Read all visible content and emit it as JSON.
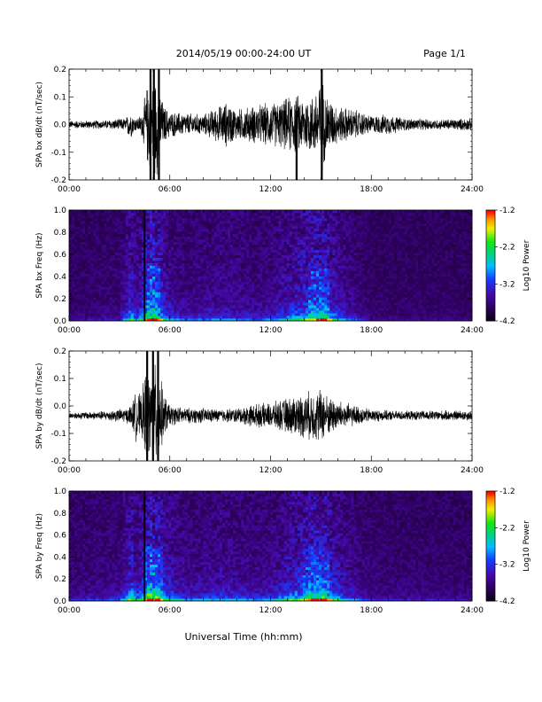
{
  "header": {
    "date_range": "2014/05/19  00:00-24:00 UT",
    "page": "Page 1/1"
  },
  "x_axis": {
    "label": "Universal Time (hh:mm)",
    "ticks": [
      "00:00",
      "06:00",
      "12:00",
      "18:00",
      "24:00"
    ]
  },
  "chart_data": [
    {
      "type": "line",
      "ylabel": "SPA bx dB/dt (nT/sec)",
      "xlim": [
        0,
        24
      ],
      "ylim": [
        -0.2,
        0.2
      ],
      "yticks": [
        "0.2",
        "0.1",
        "0.0",
        "-0.1",
        "-0.2"
      ],
      "envelope": {
        "hours": [
          0,
          2,
          3.4,
          3.6,
          3.8,
          4.0,
          4.3,
          4.8,
          5.0,
          5.3,
          5.6,
          6.0,
          7,
          8,
          9.4,
          10,
          11,
          11.8,
          12.5,
          13.4,
          14,
          14.6,
          15.0,
          15.3,
          15.7,
          16,
          17,
          18,
          19,
          20,
          22,
          24
        ],
        "amplitude_nT_per_s": [
          0.015,
          0.017,
          0.025,
          0.06,
          0.04,
          0.025,
          0.04,
          0.2,
          0.2,
          0.2,
          0.08,
          0.05,
          0.045,
          0.04,
          0.09,
          0.06,
          0.075,
          0.085,
          0.09,
          0.12,
          0.11,
          0.12,
          0.2,
          0.13,
          0.09,
          0.075,
          0.06,
          0.035,
          0.04,
          0.025,
          0.02,
          0.025
        ]
      },
      "spikes": [
        {
          "hour": 4.85,
          "min": -0.2,
          "max": 0.2
        },
        {
          "hour": 5.05,
          "min": -0.2,
          "max": 0.2
        },
        {
          "hour": 5.35,
          "min": -0.2,
          "max": 0.2
        },
        {
          "hour": 13.55,
          "min": -0.2,
          "max": 0.05
        },
        {
          "hour": 15.05,
          "min": -0.2,
          "max": 0.2
        }
      ]
    },
    {
      "type": "heatmap",
      "ylabel": "SPA bx Freq (Hz)",
      "xlim": [
        0,
        24
      ],
      "ylim": [
        0,
        1.0
      ],
      "yticks": [
        "1.0",
        "0.8",
        "0.6",
        "0.4",
        "0.2",
        "0.0"
      ],
      "colorbar": {
        "label": "Log10 Power",
        "ticks": [
          "-1.2",
          "-2.2",
          "-3.2",
          "-4.2"
        ],
        "range": [
          -4.2,
          -1.2
        ]
      },
      "data_gap_hours": [
        4.45,
        4.55
      ],
      "activity": {
        "hours": [
          0,
          3,
          3.7,
          4.0,
          4.8,
          5.2,
          5.8,
          7,
          9.3,
          11,
          12,
          14.5,
          15.2,
          16.2,
          17,
          18,
          24
        ],
        "level": [
          0.1,
          0.2,
          0.7,
          0.4,
          1.0,
          0.95,
          0.5,
          0.3,
          0.4,
          0.3,
          0.35,
          0.8,
          0.85,
          0.45,
          0.3,
          0.1,
          0.08
        ]
      }
    },
    {
      "type": "line",
      "ylabel": "SPA by dB/dt (nT/sec)",
      "xlim": [
        0,
        24
      ],
      "ylim": [
        -0.2,
        0.2
      ],
      "yticks": [
        "0.2",
        "0.1",
        "0.0",
        "-0.1",
        "-0.2"
      ],
      "envelope": {
        "hours": [
          0,
          2,
          3.5,
          3.8,
          4.0,
          4.3,
          4.6,
          4.8,
          5.0,
          5.3,
          5.6,
          6.0,
          7,
          8,
          9,
          10,
          11,
          12,
          13,
          14,
          14.6,
          15.0,
          15.4,
          16,
          17,
          18,
          19,
          20,
          22,
          24
        ],
        "amplitude_nT_per_s": [
          0.012,
          0.018,
          0.03,
          0.06,
          0.1,
          0.08,
          0.2,
          0.15,
          0.2,
          0.2,
          0.1,
          0.04,
          0.03,
          0.03,
          0.025,
          0.03,
          0.045,
          0.05,
          0.07,
          0.09,
          0.1,
          0.11,
          0.08,
          0.06,
          0.04,
          0.025,
          0.02,
          0.018,
          0.02,
          0.02
        ]
      },
      "baseline": -0.035,
      "spikes": [
        {
          "hour": 4.65,
          "min": -0.2,
          "max": 0.2
        },
        {
          "hour": 5.0,
          "min": -0.2,
          "max": 0.2
        },
        {
          "hour": 5.3,
          "min": -0.2,
          "max": 0.2
        }
      ]
    },
    {
      "type": "heatmap",
      "ylabel": "SPA by Freq (Hz)",
      "xlim": [
        0,
        24
      ],
      "ylim": [
        0,
        1.0
      ],
      "yticks": [
        "1.0",
        "0.8",
        "0.6",
        "0.4",
        "0.2",
        "0.0"
      ],
      "colorbar": {
        "label": "Log10 Power",
        "ticks": [
          "-1.2",
          "-2.2",
          "-3.2",
          "-4.2"
        ],
        "range": [
          -4.2,
          -1.2
        ]
      },
      "data_gap_hours": [
        4.45,
        4.55
      ],
      "activity": {
        "hours": [
          0,
          3,
          3.7,
          4.0,
          4.8,
          5.2,
          5.8,
          7,
          9.3,
          11,
          12,
          14.5,
          15.2,
          16.2,
          17,
          18,
          24
        ],
        "level": [
          0.2,
          0.3,
          0.8,
          0.5,
          1.0,
          0.95,
          0.6,
          0.35,
          0.45,
          0.35,
          0.4,
          0.85,
          0.9,
          0.5,
          0.35,
          0.2,
          0.15
        ]
      }
    }
  ]
}
